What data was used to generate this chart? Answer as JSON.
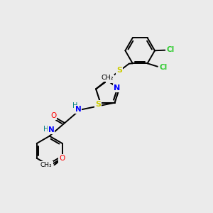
{
  "background_color": "#ebebeb",
  "bond_color": "#000000",
  "atom_colors": {
    "S": "#cccc00",
    "N": "#0000ff",
    "O": "#ff0000",
    "Cl": "#33cc33",
    "C": "#000000",
    "H": "#008080"
  }
}
